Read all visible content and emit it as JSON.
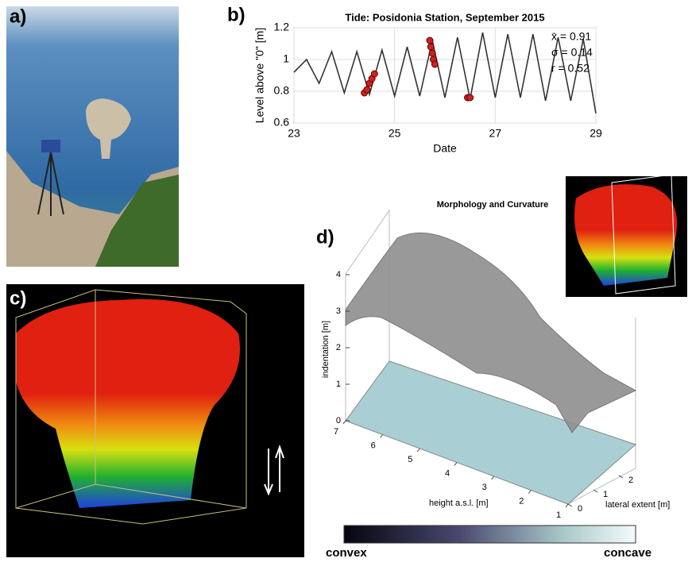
{
  "panels": [
    "a)",
    "b)",
    "c)",
    "d)"
  ],
  "chart_data": [
    {
      "type": "line",
      "title": "Tide: Posidonia Station, September 2015",
      "xlabel": "Date",
      "ylabel": "Level above \"0\" [m]",
      "xlim": [
        23,
        29
      ],
      "xticks": [
        23,
        25,
        27,
        29
      ],
      "ylim": [
        0.6,
        1.2
      ],
      "yticks": [
        0.6,
        0.8,
        1,
        1.2
      ],
      "grid": true,
      "annotations": [
        "x̄ = 0.91",
        "σ = 0.14",
        "r = 0.52"
      ],
      "series": [
        {
          "color": "#333333",
          "x": [
            23,
            23.25,
            23.5,
            23.75,
            24,
            24.25,
            24.5,
            24.75,
            25,
            25.25,
            25.5,
            25.75,
            26,
            26.25,
            26.5,
            26.75,
            27,
            27.25,
            27.5,
            27.75,
            28,
            28.25,
            28.5,
            28.75,
            29
          ],
          "values": [
            0.92,
            1.0,
            0.85,
            1.05,
            0.79,
            1.05,
            0.78,
            1.06,
            0.77,
            1.08,
            0.77,
            1.12,
            0.76,
            1.14,
            0.75,
            1.17,
            0.76,
            1.16,
            0.76,
            1.16,
            0.74,
            1.14,
            0.74,
            1.13,
            0.66
          ]
        },
        {
          "color": "#cc2222",
          "marker": true,
          "x": [
            24.4,
            24.45,
            24.5,
            24.55,
            24.6,
            25.7,
            25.72,
            25.75,
            25.77,
            25.8,
            26.45,
            26.5
          ],
          "values": [
            0.79,
            0.81,
            0.85,
            0.88,
            0.91,
            1.12,
            1.08,
            1.04,
            1.0,
            0.97,
            0.76,
            0.76
          ]
        }
      ]
    },
    {
      "type": "surface",
      "title": "Morphology and Curvature",
      "zlabel": "indentation [m]",
      "xlabel": "height a.s.l. [m]",
      "ylabel": "lateral extent [m]",
      "zticks": [
        0,
        1,
        2,
        3,
        4
      ],
      "xticks": [
        1,
        2,
        3,
        4,
        5,
        6,
        7
      ],
      "yticks": [
        0,
        1,
        2
      ],
      "colorbar_labels": [
        "convex",
        "concave"
      ]
    }
  ]
}
